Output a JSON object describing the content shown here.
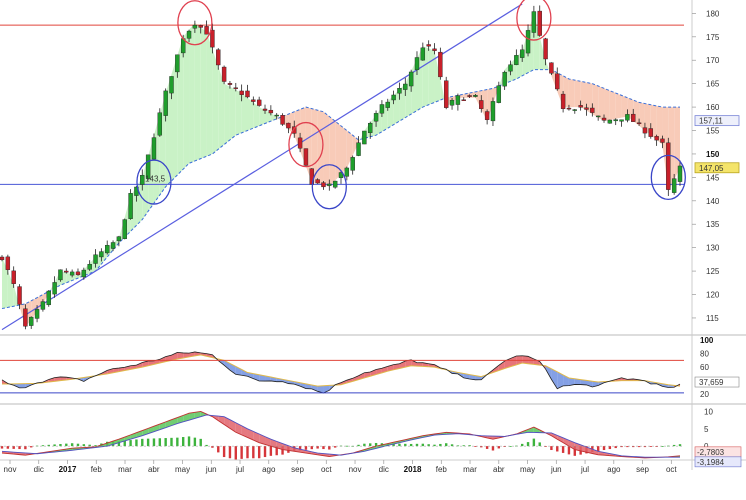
{
  "chart_data": [
    {
      "type": "candlestick",
      "panel": "price",
      "colors": {
        "up": "#1f9e2c",
        "down": "#c8202a",
        "wick": "#222222",
        "ma": "#3a6fd8",
        "fill_above": "#c9f2c6",
        "fill_below": "#f8cbb8",
        "hline_red": "#e0453a",
        "hline_blue": "#4a57d6",
        "trendline": "#5a5fe0",
        "circle_red": "#e0404f",
        "circle_blue": "#3a46c8"
      },
      "ylim": [
        112,
        182
      ],
      "y_ticks": [
        "115",
        "120",
        "125",
        "130",
        "135",
        "140",
        "145",
        "150",
        "155",
        "160",
        "165",
        "170",
        "175",
        "180"
      ],
      "x_ticks": [
        "nov",
        "dic",
        "2017",
        "feb",
        "mar",
        "abr",
        "may",
        "jun",
        "jul",
        "ago",
        "sep",
        "oct",
        "nov",
        "dic",
        "2018",
        "feb",
        "mar",
        "abr",
        "may",
        "jun",
        "jul",
        "ago",
        "sep",
        "oct"
      ],
      "x_ticks_bold": [
        "2017",
        "2018"
      ],
      "close_anchors": [
        [
          0,
          128
        ],
        [
          2,
          122
        ],
        [
          4,
          113
        ],
        [
          7,
          118
        ],
        [
          10,
          125
        ],
        [
          13,
          124
        ],
        [
          16,
          128
        ],
        [
          20,
          132
        ],
        [
          22,
          141
        ],
        [
          24,
          145
        ],
        [
          28,
          163
        ],
        [
          31,
          175
        ],
        [
          33,
          178
        ],
        [
          35,
          176
        ],
        [
          38,
          165
        ],
        [
          41,
          163
        ],
        [
          44,
          160
        ],
        [
          47,
          158
        ],
        [
          50,
          154
        ],
        [
          53,
          144
        ],
        [
          56,
          143
        ],
        [
          59,
          147
        ],
        [
          62,
          155
        ],
        [
          65,
          160
        ],
        [
          69,
          165
        ],
        [
          72,
          173
        ],
        [
          74,
          172
        ],
        [
          76,
          160
        ],
        [
          78,
          162
        ],
        [
          81,
          162
        ],
        [
          83,
          157
        ],
        [
          86,
          168
        ],
        [
          89,
          172
        ],
        [
          91,
          180
        ],
        [
          93,
          170
        ],
        [
          96,
          160
        ],
        [
          99,
          160
        ],
        [
          103,
          157
        ],
        [
          107,
          158
        ],
        [
          110,
          155
        ],
        [
          113,
          152
        ],
        [
          114,
          142
        ],
        [
          116,
          147
        ]
      ],
      "ma_anchors": [
        [
          0,
          117
        ],
        [
          4,
          118
        ],
        [
          10,
          122
        ],
        [
          16,
          125
        ],
        [
          20,
          131
        ],
        [
          24,
          136
        ],
        [
          28,
          143
        ],
        [
          32,
          148
        ],
        [
          36,
          150
        ],
        [
          40,
          154
        ],
        [
          44,
          156
        ],
        [
          48,
          158
        ],
        [
          52,
          160
        ],
        [
          55,
          159
        ],
        [
          58,
          156
        ],
        [
          61,
          153
        ],
        [
          64,
          154
        ],
        [
          68,
          157
        ],
        [
          72,
          160
        ],
        [
          76,
          162
        ],
        [
          80,
          163
        ],
        [
          84,
          164
        ],
        [
          88,
          166
        ],
        [
          91,
          168
        ],
        [
          94,
          168
        ],
        [
          97,
          166
        ],
        [
          101,
          165
        ],
        [
          105,
          163
        ],
        [
          109,
          161
        ],
        [
          113,
          160
        ]
      ],
      "horizontal_lines": [
        {
          "value": 177.5,
          "color": "red"
        },
        {
          "value": 143.5,
          "color": "blue"
        }
      ],
      "trendline": [
        [
          0,
          112.5
        ],
        [
          89,
          182
        ]
      ],
      "highlight_circles": [
        {
          "x": 33,
          "y": 178,
          "color": "red"
        },
        {
          "x": 26,
          "y": 144,
          "color": "blue"
        },
        {
          "x": 52,
          "y": 152,
          "color": "red"
        },
        {
          "x": 56,
          "y": 143,
          "color": "blue"
        },
        {
          "x": 91,
          "y": 179,
          "color": "red"
        },
        {
          "x": 114,
          "y": 145,
          "color": "blue"
        }
      ],
      "price_tags": [
        {
          "label": "157,11",
          "value": 157.11,
          "style": "blue"
        },
        {
          "label": "147,05",
          "value": 147.05,
          "style": "yellow"
        }
      ],
      "inline_label": {
        "text": "143,5",
        "value": 143.5
      },
      "n_bars": 117
    },
    {
      "type": "line",
      "panel": "oscillator",
      "ylim": [
        10,
        100
      ],
      "y_ticks": [
        "20",
        "40",
        "60",
        "80",
        "100"
      ],
      "levels": [
        {
          "value": 70,
          "color": "#e0453a"
        },
        {
          "value": 22,
          "color": "#3a46c8"
        }
      ],
      "last_value_tags": [
        "37,659"
      ],
      "osc_anchors": [
        [
          0,
          40
        ],
        [
          3,
          28
        ],
        [
          6,
          38
        ],
        [
          10,
          45
        ],
        [
          14,
          40
        ],
        [
          18,
          55
        ],
        [
          22,
          62
        ],
        [
          26,
          70
        ],
        [
          30,
          80
        ],
        [
          33,
          82
        ],
        [
          36,
          78
        ],
        [
          40,
          50
        ],
        [
          44,
          40
        ],
        [
          48,
          40
        ],
        [
          52,
          30
        ],
        [
          55,
          22
        ],
        [
          58,
          38
        ],
        [
          62,
          52
        ],
        [
          66,
          60
        ],
        [
          70,
          70
        ],
        [
          74,
          62
        ],
        [
          78,
          48
        ],
        [
          82,
          40
        ],
        [
          86,
          70
        ],
        [
          89,
          78
        ],
        [
          92,
          68
        ],
        [
          95,
          30
        ],
        [
          98,
          34
        ],
        [
          102,
          32
        ],
        [
          106,
          44
        ],
        [
          110,
          40
        ],
        [
          114,
          28
        ],
        [
          116,
          34
        ]
      ],
      "signal_anchors": [
        [
          0,
          35
        ],
        [
          6,
          36
        ],
        [
          12,
          42
        ],
        [
          18,
          50
        ],
        [
          24,
          60
        ],
        [
          30,
          72
        ],
        [
          34,
          78
        ],
        [
          38,
          70
        ],
        [
          42,
          52
        ],
        [
          48,
          42
        ],
        [
          54,
          32
        ],
        [
          58,
          34
        ],
        [
          62,
          44
        ],
        [
          66,
          54
        ],
        [
          70,
          62
        ],
        [
          74,
          60
        ],
        [
          78,
          52
        ],
        [
          82,
          46
        ],
        [
          86,
          58
        ],
        [
          89,
          66
        ],
        [
          93,
          62
        ],
        [
          97,
          44
        ],
        [
          102,
          38
        ],
        [
          106,
          40
        ],
        [
          110,
          40
        ],
        [
          114,
          34
        ],
        [
          116,
          32
        ]
      ]
    },
    {
      "type": "histogram",
      "panel": "macd",
      "ylim": [
        -4,
        11
      ],
      "y_ticks": [
        "0",
        "5",
        "10"
      ],
      "last_value_tags": [
        "-2,7803",
        "-3,1984"
      ],
      "macd_anchors": [
        [
          0,
          -2
        ],
        [
          4,
          -2.6
        ],
        [
          8,
          -1.6
        ],
        [
          12,
          -0.6
        ],
        [
          16,
          -0.2
        ],
        [
          20,
          2
        ],
        [
          24,
          4.5
        ],
        [
          28,
          7
        ],
        [
          32,
          9.5
        ],
        [
          34,
          10
        ],
        [
          36,
          8.5
        ],
        [
          40,
          4
        ],
        [
          44,
          1
        ],
        [
          48,
          -1
        ],
        [
          52,
          -2
        ],
        [
          56,
          -3
        ],
        [
          60,
          -2
        ],
        [
          64,
          0
        ],
        [
          68,
          1.5
        ],
        [
          72,
          3
        ],
        [
          76,
          4
        ],
        [
          80,
          3.5
        ],
        [
          84,
          2
        ],
        [
          88,
          3.5
        ],
        [
          91,
          5.5
        ],
        [
          94,
          3
        ],
        [
          98,
          -1
        ],
        [
          102,
          -2.5
        ],
        [
          106,
          -3
        ],
        [
          110,
          -3.4
        ],
        [
          114,
          -3.1
        ],
        [
          116,
          -2.8
        ]
      ],
      "signal_anchors": [
        [
          0,
          -1.5
        ],
        [
          6,
          -2.2
        ],
        [
          12,
          -1.2
        ],
        [
          18,
          0
        ],
        [
          24,
          3
        ],
        [
          30,
          6.5
        ],
        [
          35,
          9
        ],
        [
          38,
          8.5
        ],
        [
          42,
          5
        ],
        [
          46,
          2
        ],
        [
          50,
          -0.5
        ],
        [
          54,
          -2
        ],
        [
          58,
          -2.6
        ],
        [
          62,
          -1.5
        ],
        [
          66,
          0.2
        ],
        [
          70,
          1.8
        ],
        [
          74,
          3.2
        ],
        [
          78,
          3.6
        ],
        [
          82,
          3
        ],
        [
          86,
          2.8
        ],
        [
          90,
          4
        ],
        [
          94,
          3.8
        ],
        [
          98,
          1
        ],
        [
          102,
          -1.5
        ],
        [
          106,
          -2.8
        ],
        [
          110,
          -3.2
        ],
        [
          114,
          -3.2
        ],
        [
          116,
          -3.2
        ]
      ]
    }
  ]
}
